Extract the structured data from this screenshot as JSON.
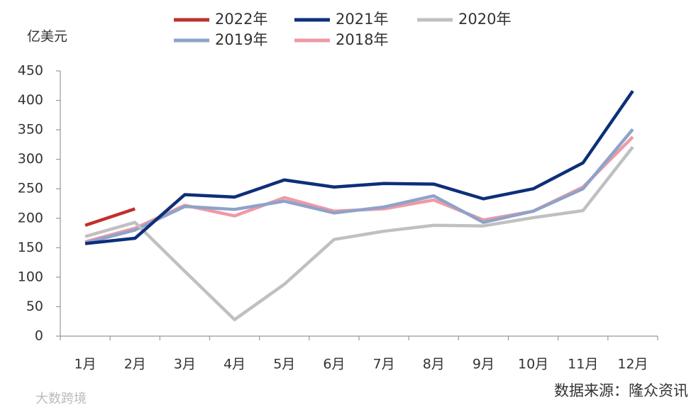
{
  "chart_data": {
    "type": "line",
    "unit_label": "亿美元",
    "source": "数据来源：隆众资讯",
    "watermark": "大数跨境",
    "categories": [
      "1月",
      "2月",
      "3月",
      "4月",
      "5月",
      "6月",
      "7月",
      "8月",
      "9月",
      "10月",
      "11月",
      "12月"
    ],
    "series": [
      {
        "name": "2022年",
        "color": "#c0302b",
        "values": [
          188,
          216,
          null,
          null,
          null,
          null,
          null,
          null,
          null,
          null,
          null,
          null
        ]
      },
      {
        "name": "2021年",
        "color": "#0d2f7a",
        "values": [
          157,
          166,
          240,
          236,
          265,
          253,
          259,
          258,
          233,
          250,
          294,
          416
        ]
      },
      {
        "name": "2020年",
        "color": "#c0c0c0",
        "values": [
          169,
          193,
          110,
          28,
          88,
          164,
          178,
          188,
          187,
          201,
          213,
          321
        ]
      },
      {
        "name": "2019年",
        "color": "#8ea3c8",
        "values": [
          158,
          180,
          220,
          215,
          229,
          209,
          219,
          238,
          193,
          212,
          250,
          351
        ]
      },
      {
        "name": "2018年",
        "color": "#ee9aa6",
        "values": [
          160,
          183,
          222,
          204,
          235,
          212,
          216,
          231,
          197,
          212,
          253,
          338
        ]
      }
    ],
    "ylim": [
      0,
      450
    ],
    "yticks": [
      0,
      50,
      100,
      150,
      200,
      250,
      300,
      350,
      400,
      450
    ],
    "legend": "top"
  }
}
